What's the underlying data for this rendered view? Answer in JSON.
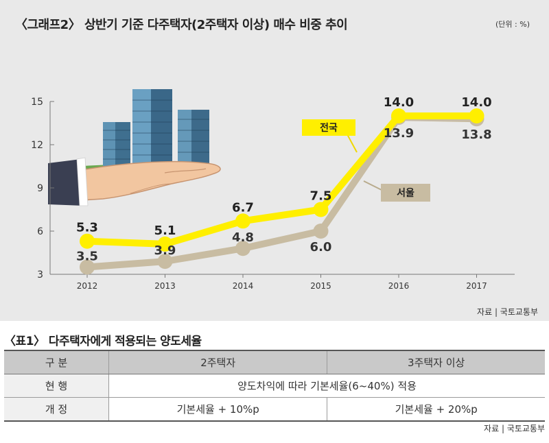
{
  "chart_title": "〈그래프2〉 상반기 기준 다주택자(2주택자 이상) 매수 비중 추이",
  "chart_unit": "(단위 : %)",
  "chart_source": "자료 | 국토교통부",
  "chart_data": {
    "type": "line",
    "categories": [
      "2012",
      "2013",
      "2014",
      "2015",
      "2016",
      "2017"
    ],
    "ylim": [
      3,
      15
    ],
    "yticks": [
      "3",
      "6",
      "9",
      "12",
      "15"
    ],
    "grid": false,
    "series": [
      {
        "name": "전국",
        "values": [
          5.3,
          5.1,
          6.7,
          7.5,
          14.0,
          14.0
        ],
        "labels": [
          "5.3",
          "5.1",
          "6.7",
          "7.5",
          "14.0",
          "14.0"
        ],
        "color": "#ffef00"
      },
      {
        "name": "서울",
        "values": [
          3.5,
          3.9,
          4.8,
          6.0,
          13.9,
          13.8
        ],
        "labels": [
          "3.5",
          "3.9",
          "4.8",
          "6.0",
          "13.9",
          "13.8"
        ],
        "color": "#c8bca2"
      }
    ]
  },
  "table": {
    "title": "〈표1〉 다주택자에게 적용되는 양도세율",
    "headers": [
      "구 분",
      "2주택자",
      "3주택자 이상"
    ],
    "rows": [
      {
        "label": "현 행",
        "merged": "양도차익에 따라 기본세율(6~40%) 적용"
      },
      {
        "label": "개 정",
        "cells": [
          "기본세율 + 10%p",
          "기본세율 + 20%p"
        ]
      }
    ],
    "source": "자료 | 국토교통부"
  }
}
